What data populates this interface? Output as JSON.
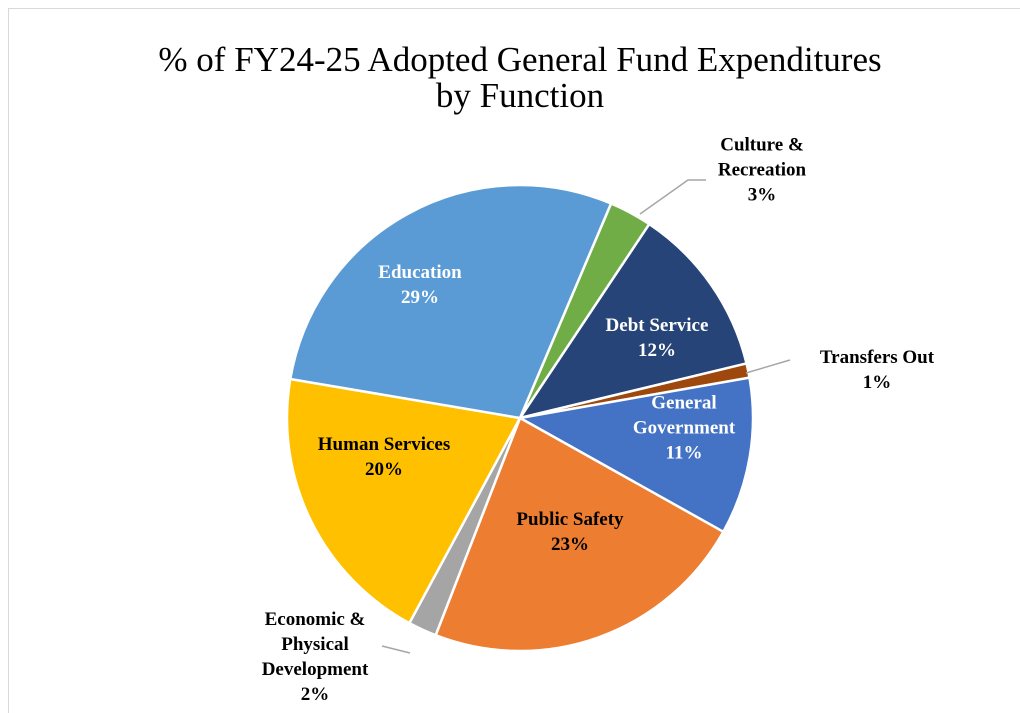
{
  "chart_data": {
    "type": "pie",
    "title": "% of FY24-25 Adopted General Fund Expenditures by Function",
    "categories": [
      "Culture & Recreation",
      "Debt Service",
      "Transfers Out",
      "General Government",
      "Public Safety",
      "Economic & Physical Development",
      "Human Services",
      "Education"
    ],
    "values": [
      3,
      12,
      1,
      11,
      23,
      2,
      20,
      29
    ],
    "value_labels": [
      "3%",
      "12%",
      "1%",
      "11%",
      "23%",
      "2%",
      "20%",
      "29%"
    ],
    "colors": [
      "#70ad47",
      "#264478",
      "#9e480e",
      "#4472c4",
      "#ed7d31",
      "#a5a5a5",
      "#ffc000",
      "#5b9bd5"
    ]
  }
}
